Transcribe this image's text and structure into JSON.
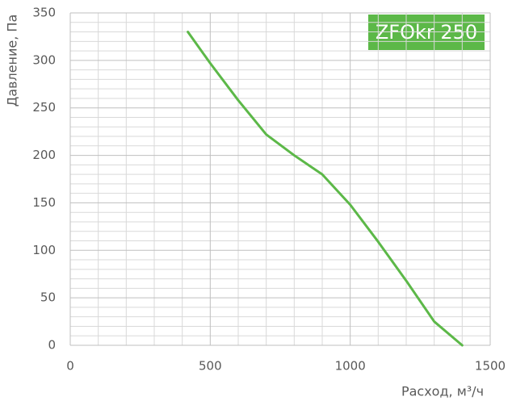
{
  "chart_data": {
    "type": "line",
    "title": "ZFOkr 250",
    "x_label": "Расход, м³/ч",
    "y_label": "Давление, Па",
    "x": [
      420,
      500,
      600,
      700,
      800,
      900,
      1000,
      1100,
      1200,
      1300,
      1400
    ],
    "values": [
      330,
      297,
      258,
      222,
      200,
      180,
      148,
      109,
      68,
      25,
      0
    ],
    "color": "#5cb848",
    "xlim": [
      0,
      1500
    ],
    "ylim": [
      0,
      350
    ],
    "xticks": [
      0,
      500,
      1000,
      1500
    ],
    "yticks": [
      0,
      50,
      100,
      150,
      200,
      250,
      300,
      350
    ],
    "x_minor_ticks": [
      100,
      200,
      300,
      400,
      600,
      700,
      800,
      900,
      1100,
      1200,
      1300,
      1400
    ],
    "y_minor_ticks": [
      10,
      20,
      30,
      40,
      60,
      70,
      80,
      90,
      110,
      120,
      130,
      140,
      160,
      170,
      180,
      190,
      210,
      220,
      230,
      240,
      260,
      270,
      280,
      290,
      310,
      320,
      330,
      340
    ],
    "grid": true
  }
}
